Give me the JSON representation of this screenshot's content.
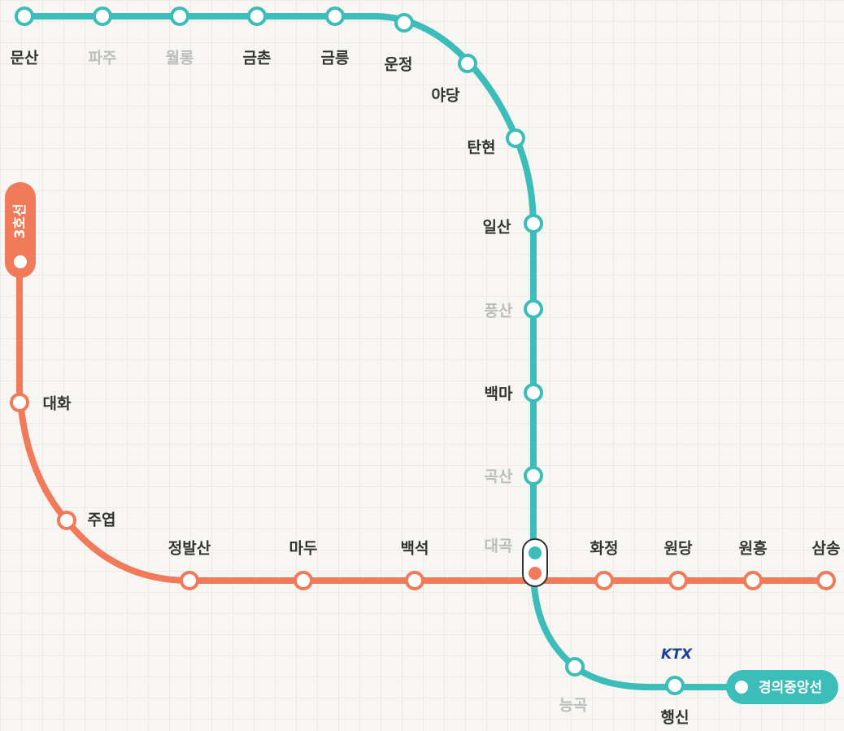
{
  "lines": [
    {
      "name": "경의중앙선",
      "stations": [
        "문산",
        "파주",
        "월롱",
        "금촌",
        "금릉",
        "운정",
        "야당",
        "탄현",
        "일산",
        "풍산",
        "백마",
        "곡산",
        "대곡",
        "능곡",
        "행신"
      ]
    },
    {
      "name": "3호선",
      "stations": [
        "대화",
        "주엽",
        "정발산",
        "마두",
        "백석",
        "대곡",
        "화정",
        "원당",
        "원흥",
        "삼송"
      ]
    }
  ],
  "ktx_logo": "KTX"
}
